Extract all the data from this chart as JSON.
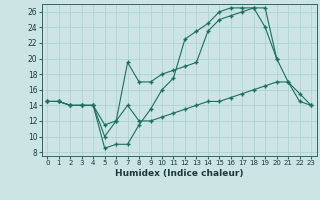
{
  "xlabel": "Humidex (Indice chaleur)",
  "xlim": [
    -0.5,
    23.5
  ],
  "ylim": [
    7.5,
    27
  ],
  "xticks": [
    0,
    1,
    2,
    3,
    4,
    5,
    6,
    7,
    8,
    9,
    10,
    11,
    12,
    13,
    14,
    15,
    16,
    17,
    18,
    19,
    20,
    21,
    22,
    23
  ],
  "yticks": [
    8,
    10,
    12,
    14,
    16,
    18,
    20,
    22,
    24,
    26
  ],
  "bg_color": "#cde4e4",
  "grid_color": "#aacfcf",
  "line_color": "#1a7060",
  "line1_x": [
    0,
    1,
    2,
    3,
    4,
    5,
    6,
    7,
    8,
    9,
    10,
    11,
    12,
    13,
    14,
    15,
    16,
    17,
    18,
    19,
    20,
    21,
    22,
    23
  ],
  "line1_y": [
    14.5,
    14.5,
    14.0,
    14.0,
    14.0,
    11.5,
    12.0,
    14.0,
    12.0,
    12.0,
    12.5,
    13.0,
    13.5,
    14.0,
    14.5,
    14.5,
    15.0,
    15.5,
    16.0,
    16.5,
    17.0,
    17.0,
    14.5,
    14.0
  ],
  "line2_x": [
    0,
    1,
    2,
    3,
    4,
    5,
    6,
    7,
    8,
    9,
    10,
    11,
    12,
    13,
    14,
    15,
    16,
    17,
    18,
    19,
    20,
    21,
    22,
    23
  ],
  "line2_y": [
    14.5,
    14.5,
    14.0,
    14.0,
    14.0,
    8.5,
    9.0,
    9.0,
    11.5,
    13.5,
    16.0,
    17.5,
    22.5,
    23.5,
    24.5,
    26.0,
    26.5,
    26.5,
    26.5,
    24.0,
    20.0,
    17.0,
    15.5,
    14.0
  ],
  "line3_x": [
    0,
    1,
    2,
    3,
    4,
    5,
    6,
    7,
    8,
    9,
    10,
    11,
    12,
    13,
    14,
    15,
    16,
    17,
    18,
    19,
    20
  ],
  "line3_y": [
    14.5,
    14.5,
    14.0,
    14.0,
    14.0,
    10.0,
    12.0,
    19.5,
    17.0,
    17.0,
    18.0,
    18.5,
    19.0,
    19.5,
    23.5,
    25.0,
    25.5,
    26.0,
    26.5,
    26.5,
    20.0
  ]
}
